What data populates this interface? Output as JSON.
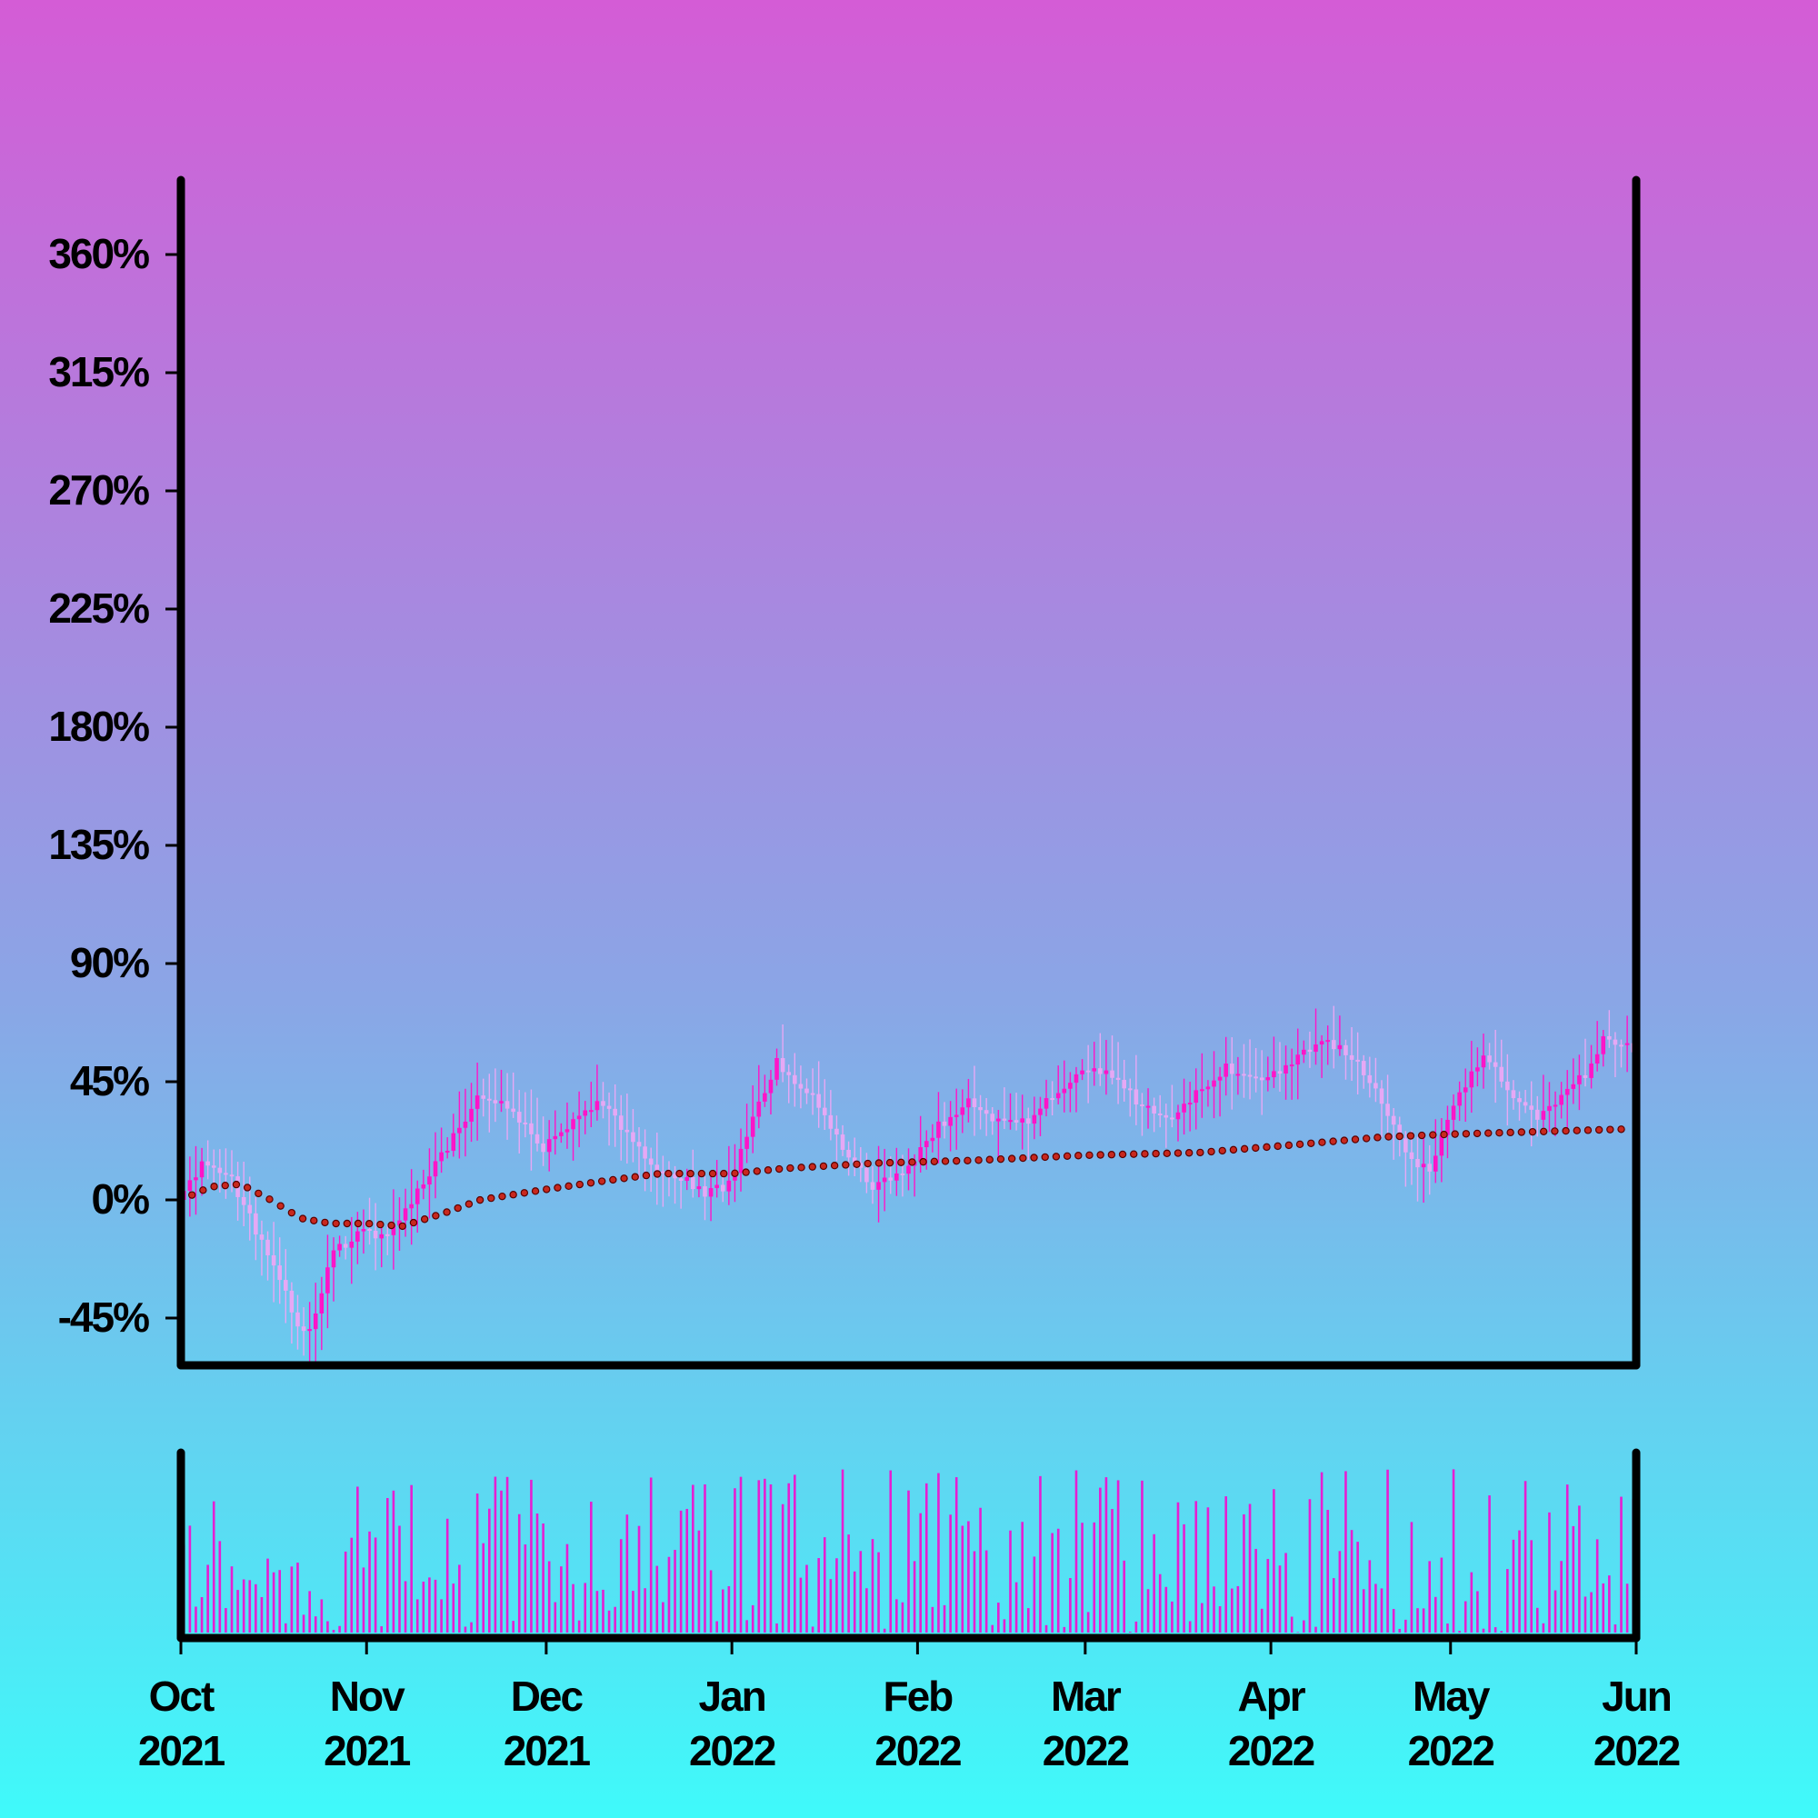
{
  "chart_data": {
    "type": "candlestick",
    "title": "",
    "xlabel": "",
    "ylabel": "",
    "y_unit": "%",
    "ylim": [
      -62,
      410
    ],
    "yticks": [
      -45,
      0,
      45,
      90,
      135,
      180,
      225,
      270,
      315,
      360
    ],
    "ytick_labels": [
      "-45%",
      "0%",
      "45%",
      "90%",
      "135%",
      "180%",
      "225%",
      "270%",
      "315%",
      "360%"
    ],
    "x_range": [
      "2021-10-01",
      "2022-06-01"
    ],
    "xticks": [
      {
        "date": "2021-10-01",
        "month": "Oct",
        "year": "2021"
      },
      {
        "date": "2021-11-01",
        "month": "Nov",
        "year": "2021"
      },
      {
        "date": "2021-12-01",
        "month": "Dec",
        "year": "2021"
      },
      {
        "date": "2022-01-01",
        "month": "Jan",
        "year": "2022"
      },
      {
        "date": "2022-02-01",
        "month": "Feb",
        "year": "2022"
      },
      {
        "date": "2022-03-01",
        "month": "Mar",
        "year": "2022"
      },
      {
        "date": "2022-04-01",
        "month": "Apr",
        "year": "2022"
      },
      {
        "date": "2022-05-01",
        "month": "May",
        "year": "2022"
      },
      {
        "date": "2022-06-01",
        "month": "Jun",
        "year": "2022"
      }
    ],
    "start_date": "2021-10-01",
    "close_path": [
      [
        "2021-10-01",
        0
      ],
      [
        "2021-10-05",
        14
      ],
      [
        "2021-10-10",
        8
      ],
      [
        "2021-10-14",
        -12
      ],
      [
        "2021-10-18",
        -30
      ],
      [
        "2021-10-21",
        -47
      ],
      [
        "2021-10-23",
        -50
      ],
      [
        "2021-10-27",
        -20
      ],
      [
        "2021-11-01",
        -12
      ],
      [
        "2021-11-05",
        -15
      ],
      [
        "2021-11-09",
        0
      ],
      [
        "2021-11-15",
        20
      ],
      [
        "2021-11-20",
        38
      ],
      [
        "2021-11-25",
        36
      ],
      [
        "2021-12-01",
        20
      ],
      [
        "2021-12-05",
        28
      ],
      [
        "2021-12-10",
        38
      ],
      [
        "2021-12-15",
        25
      ],
      [
        "2021-12-20",
        12
      ],
      [
        "2021-12-25",
        8
      ],
      [
        "2021-12-28",
        2
      ],
      [
        "2022-01-01",
        6
      ],
      [
        "2022-01-05",
        30
      ],
      [
        "2022-01-09",
        52
      ],
      [
        "2022-01-14",
        42
      ],
      [
        "2022-01-20",
        20
      ],
      [
        "2022-01-25",
        5
      ],
      [
        "2022-01-30",
        10
      ],
      [
        "2022-02-05",
        28
      ],
      [
        "2022-02-10",
        38
      ],
      [
        "2022-02-15",
        30
      ],
      [
        "2022-02-20",
        30
      ],
      [
        "2022-02-25",
        42
      ],
      [
        "2022-03-01",
        48
      ],
      [
        "2022-03-05",
        50
      ],
      [
        "2022-03-10",
        38
      ],
      [
        "2022-03-15",
        30
      ],
      [
        "2022-03-20",
        40
      ],
      [
        "2022-03-25",
        50
      ],
      [
        "2022-03-30",
        45
      ],
      [
        "2022-04-05",
        52
      ],
      [
        "2022-04-10",
        62
      ],
      [
        "2022-04-15",
        55
      ],
      [
        "2022-04-20",
        38
      ],
      [
        "2022-04-25",
        15
      ],
      [
        "2022-04-28",
        12
      ],
      [
        "2022-05-02",
        35
      ],
      [
        "2022-05-07",
        55
      ],
      [
        "2022-05-12",
        40
      ],
      [
        "2022-05-16",
        30
      ],
      [
        "2022-05-20",
        38
      ],
      [
        "2022-05-24",
        48
      ],
      [
        "2022-05-27",
        62
      ],
      [
        "2022-05-31",
        58
      ]
    ],
    "moving_average": [
      [
        "2021-10-01",
        0
      ],
      [
        "2021-10-06",
        5
      ],
      [
        "2021-10-11",
        6
      ],
      [
        "2021-10-16",
        0
      ],
      [
        "2021-10-21",
        -7
      ],
      [
        "2021-10-26",
        -9
      ],
      [
        "2021-11-01",
        -9
      ],
      [
        "2021-11-07",
        -10
      ],
      [
        "2021-11-14",
        -5
      ],
      [
        "2021-11-20",
        0
      ],
      [
        "2021-12-01",
        4
      ],
      [
        "2021-12-10",
        7
      ],
      [
        "2021-12-20",
        10
      ],
      [
        "2022-01-01",
        10
      ],
      [
        "2022-01-10",
        12
      ],
      [
        "2022-01-25",
        14
      ],
      [
        "2022-02-10",
        15
      ],
      [
        "2022-03-01",
        17
      ],
      [
        "2022-03-20",
        18
      ],
      [
        "2022-04-05",
        21
      ],
      [
        "2022-04-20",
        24
      ],
      [
        "2022-05-01",
        25
      ],
      [
        "2022-05-31",
        27
      ]
    ],
    "volume_range": [
      0,
      100
    ],
    "colors": {
      "up": "#ff14c8",
      "down": "#e6a8f5",
      "moving_average": "#c8281e",
      "moving_average_outline": "#5a0000",
      "volume": "#e61ed2",
      "axis": "#000000"
    }
  }
}
